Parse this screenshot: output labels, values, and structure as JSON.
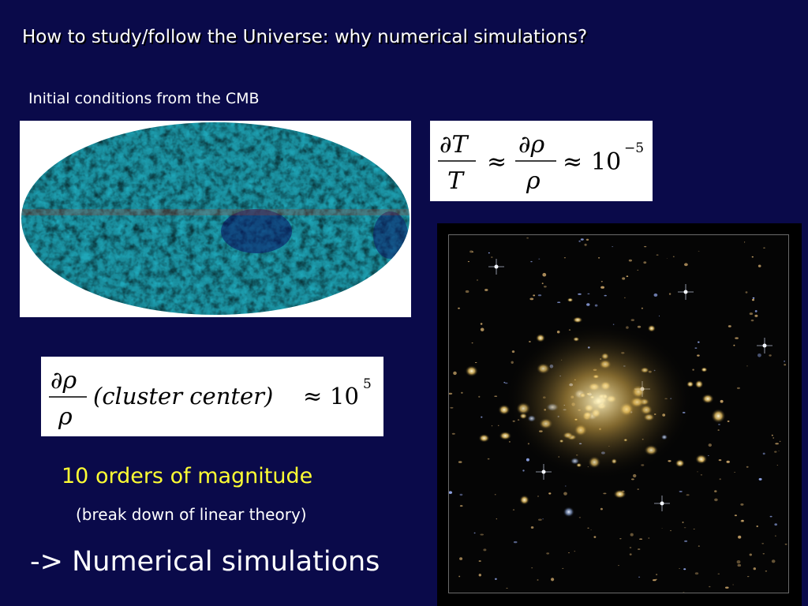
{
  "slide": {
    "title": "How to study/follow the Universe: why numerical simulations?",
    "subtitle": "Initial conditions from the CMB",
    "orders_text": "10 orders of magnitude",
    "breakdown_text": "(break down of linear theory)",
    "conclusion_text": "-> Numerical simulations"
  },
  "equation1": {
    "num_left": "∂T",
    "den_left": "T",
    "approx": "≈",
    "num_right": "∂ρ",
    "den_right": "ρ",
    "approx2": "≈",
    "base": "10",
    "exponent": "−5"
  },
  "equation2": {
    "numerator": "∂ρ",
    "denominator": "ρ",
    "expression": "(cluster center)",
    "approx": "≈",
    "base": "10",
    "exponent": "5"
  },
  "images": {
    "cmb_map": "cmb-sky-map",
    "galaxy_cluster": "galaxy-cluster-photo"
  },
  "colors": {
    "background": "#0a0a4a",
    "highlight": "#ffff33"
  }
}
